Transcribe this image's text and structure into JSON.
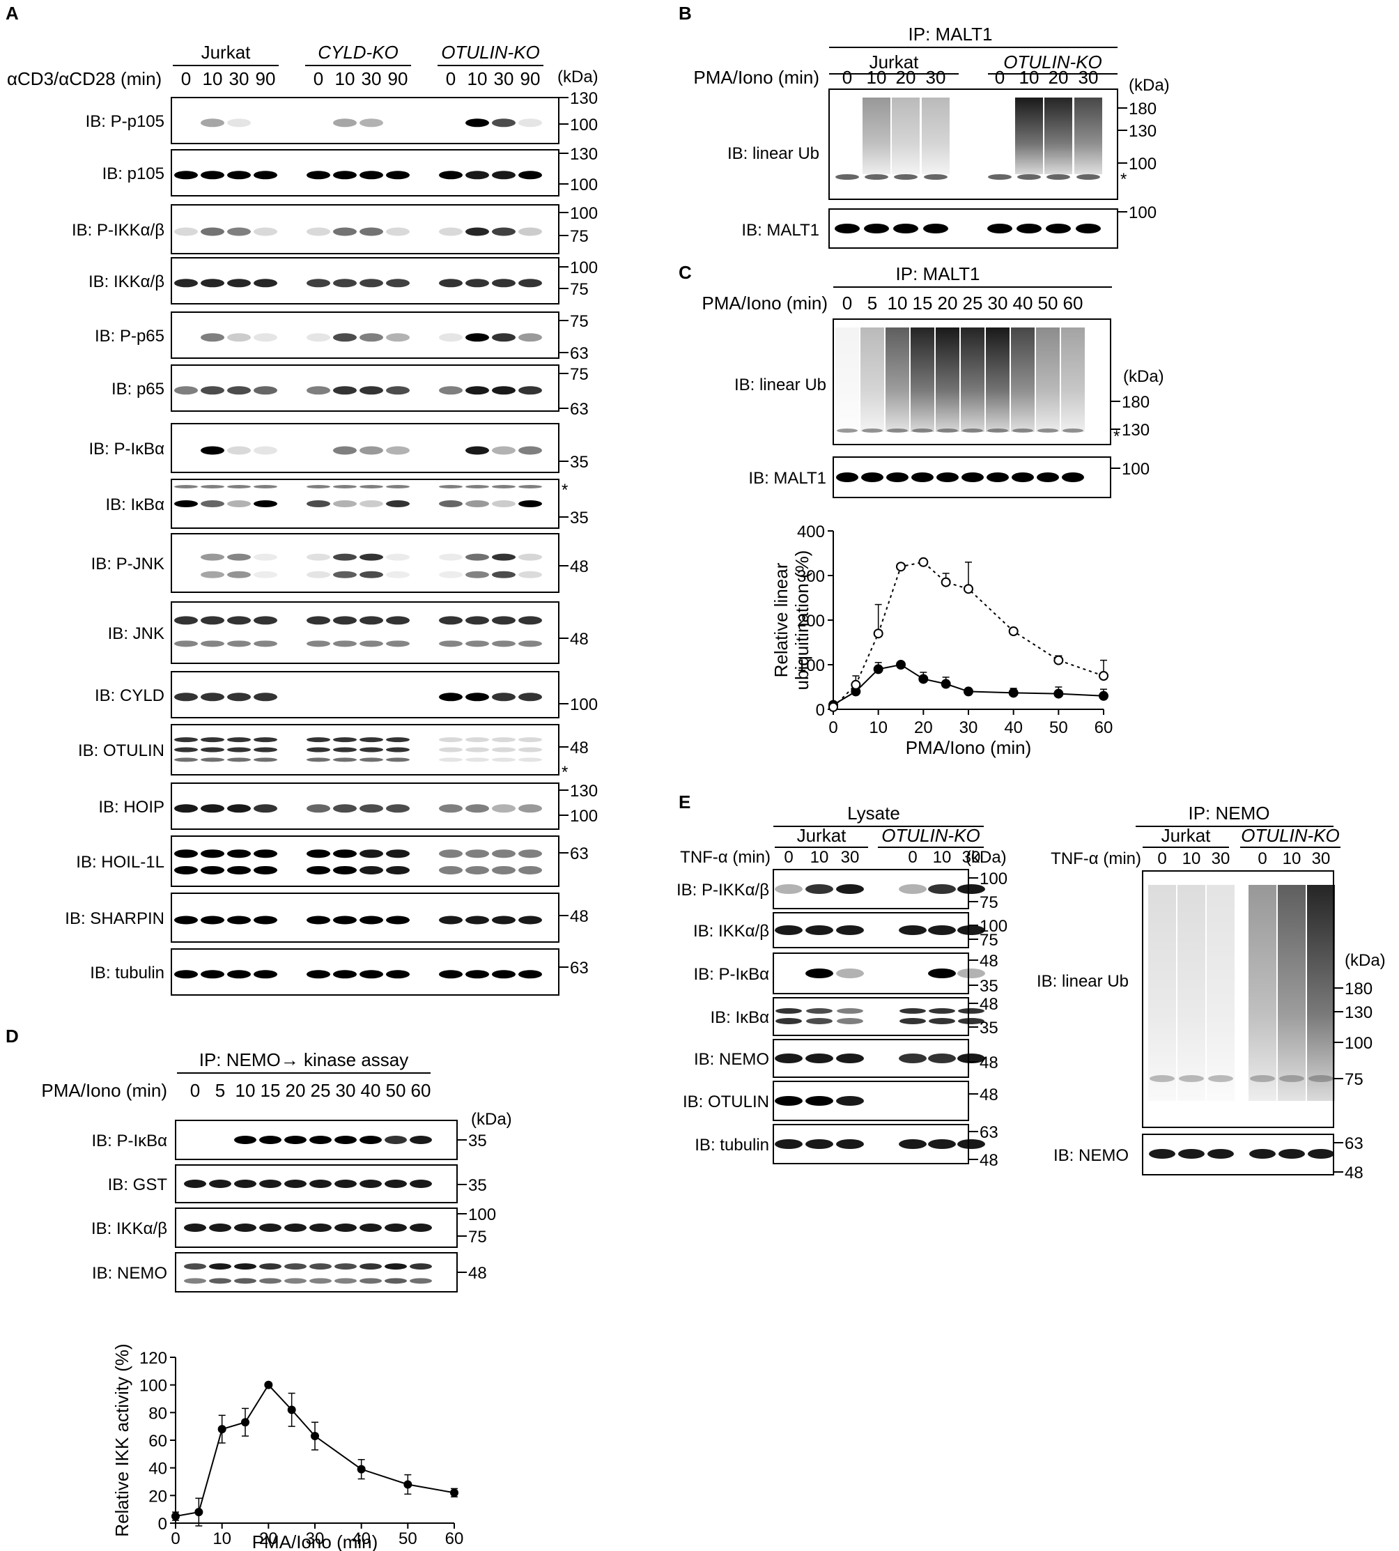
{
  "panels": {
    "A": {
      "letter": "A",
      "treatment_label": "αCD3/αCD28 (min)",
      "kda_label": "(kDa)",
      "groups": [
        "Jurkat",
        "CYLD-KO",
        "OTULIN-KO"
      ],
      "group_italic": [
        false,
        true,
        true
      ],
      "timepoints": [
        "0",
        "10",
        "30",
        "90"
      ],
      "blots": [
        {
          "label": "IB: P-p105",
          "markers": [
            "130",
            "100"
          ]
        },
        {
          "label": "IB: p105",
          "markers": [
            "130",
            "100"
          ]
        },
        {
          "label": "IB: P-IKKα/β",
          "markers": [
            "100",
            "75"
          ]
        },
        {
          "label": "IB: IKKα/β",
          "markers": [
            "100",
            "75"
          ]
        },
        {
          "label": "IB: P-p65",
          "markers": [
            "75",
            "63"
          ]
        },
        {
          "label": "IB: p65",
          "markers": [
            "75",
            "63"
          ]
        },
        {
          "label": "IB: P-IκBα",
          "markers": [
            "35"
          ]
        },
        {
          "label": "IB: IκBα",
          "markers": [
            "*",
            "35"
          ]
        },
        {
          "label": "IB: P-JNK",
          "markers": [
            "48"
          ]
        },
        {
          "label": "IB: JNK",
          "markers": [
            "48"
          ]
        },
        {
          "label": "IB: CYLD",
          "markers": [
            "100"
          ]
        },
        {
          "label": "IB: OTULIN",
          "markers": [
            "48",
            "*"
          ]
        },
        {
          "label": "IB: HOIP",
          "markers": [
            "130",
            "100"
          ]
        },
        {
          "label": "IB: HOIL-1L",
          "markers": [
            "63"
          ]
        },
        {
          "label": "IB: SHARPIN",
          "markers": [
            "48"
          ]
        },
        {
          "label": "IB: tubulin",
          "markers": [
            "63"
          ]
        }
      ]
    },
    "B": {
      "letter": "B",
      "ip_label": "IP: MALT1",
      "groups": [
        "Jurkat",
        "OTULIN-KO"
      ],
      "group_italic": [
        false,
        true
      ],
      "treatment_label": "PMA/Iono (min)",
      "timepoints": [
        "0",
        "10",
        "20",
        "30"
      ],
      "kda_label": "(kDa)",
      "blots": [
        {
          "label": "IB: linear Ub",
          "markers": [
            "180",
            "130",
            "100",
            "*"
          ]
        },
        {
          "label": "IB: MALT1",
          "markers": [
            "100"
          ]
        }
      ]
    },
    "C": {
      "letter": "C",
      "ip_label": "IP: MALT1",
      "treatment_label": "PMA/Iono (min)",
      "timepoints": [
        "0",
        "5",
        "10",
        "15",
        "20",
        "25",
        "30",
        "40",
        "50",
        "60"
      ],
      "kda_label": "(kDa)",
      "blots": [
        {
          "label": "IB: linear Ub",
          "markers": [
            "180",
            "130",
            "*"
          ]
        },
        {
          "label": "IB: MALT1",
          "markers": [
            "100"
          ]
        }
      ]
    },
    "D": {
      "letter": "D",
      "ip_label": "IP: NEMO→ kinase assay",
      "treatment_label": "PMA/Iono (min)",
      "timepoints": [
        "0",
        "5",
        "10",
        "15",
        "20",
        "25",
        "30",
        "40",
        "50",
        "60"
      ],
      "kda_label": "(kDa)",
      "blots": [
        {
          "label": "IB: P-IκBα",
          "markers": [
            "35"
          ]
        },
        {
          "label": "IB: GST",
          "markers": [
            "35"
          ]
        },
        {
          "label": "IB: IKKα/β",
          "markers": [
            "100",
            "75"
          ]
        },
        {
          "label": "IB: NEMO",
          "markers": [
            "48"
          ]
        }
      ]
    },
    "E": {
      "letter": "E",
      "lysate_label": "Lysate",
      "ip_label": "IP: NEMO",
      "groups": [
        "Jurkat",
        "OTULIN-KO"
      ],
      "group_italic": [
        false,
        true
      ],
      "treatment_label": "TNF-α (min)",
      "timepoints": [
        "0",
        "10",
        "30"
      ],
      "kda_label": "(kDa)",
      "lysate_blots": [
        {
          "label": "IB: P-IKKα/β",
          "markers": [
            "100",
            "75"
          ]
        },
        {
          "label": "IB: IKKα/β",
          "markers": [
            "100",
            "75"
          ]
        },
        {
          "label": "IB: P-IκBα",
          "markers": [
            "48",
            "35"
          ]
        },
        {
          "label": "IB: IκBα",
          "markers": [
            "48",
            "35"
          ]
        },
        {
          "label": "IB: NEMO",
          "markers": [
            "48"
          ]
        },
        {
          "label": "IB: OTULIN",
          "markers": [
            "48"
          ]
        },
        {
          "label": "IB: tubulin",
          "markers": [
            "63",
            "48"
          ]
        }
      ],
      "ip_blots": [
        {
          "label": "IB: linear Ub",
          "markers": [
            "180",
            "130",
            "100",
            "75"
          ]
        },
        {
          "label": "IB: NEMO",
          "markers": [
            "63",
            "48"
          ]
        }
      ]
    }
  },
  "chart_data": [
    {
      "panel": "C",
      "type": "line",
      "xlabel": "PMA/Iono (min)",
      "ylabel": "Relative linear ubiquitination (%)",
      "x": [
        0,
        5,
        10,
        15,
        20,
        25,
        30,
        40,
        50,
        60
      ],
      "xlim": [
        0,
        60
      ],
      "ylim": [
        0,
        400
      ],
      "xticks": [
        0,
        10,
        20,
        30,
        40,
        50,
        60
      ],
      "yticks": [
        0,
        100,
        200,
        300,
        400
      ],
      "series": [
        {
          "style": "solid-filled",
          "values": [
            10,
            40,
            90,
            100,
            68,
            57,
            40,
            37,
            35,
            30
          ],
          "errors": [
            5,
            20,
            15,
            5,
            15,
            15,
            5,
            10,
            15,
            15
          ]
        },
        {
          "style": "dotted-open",
          "values": [
            5,
            55,
            170,
            320,
            330,
            285,
            270,
            175,
            110,
            75
          ],
          "errors": [
            5,
            20,
            65,
            5,
            5,
            20,
            60,
            5,
            10,
            35
          ]
        }
      ]
    },
    {
      "panel": "D",
      "type": "line",
      "xlabel": "PMA/Iono (min)",
      "ylabel": "Relative IKK activity (%)",
      "x": [
        0,
        5,
        10,
        15,
        20,
        25,
        30,
        40,
        50,
        60
      ],
      "xlim": [
        0,
        60
      ],
      "ylim": [
        0,
        120
      ],
      "xticks": [
        0,
        10,
        20,
        30,
        40,
        50,
        60
      ],
      "yticks": [
        0,
        20,
        40,
        60,
        80,
        100,
        120
      ],
      "series": [
        {
          "style": "solid-filled",
          "values": [
            5,
            8,
            68,
            73,
            100,
            82,
            63,
            39,
            28,
            22
          ],
          "errors": [
            3,
            10,
            10,
            10,
            1,
            12,
            10,
            7,
            7,
            3
          ]
        }
      ]
    }
  ]
}
